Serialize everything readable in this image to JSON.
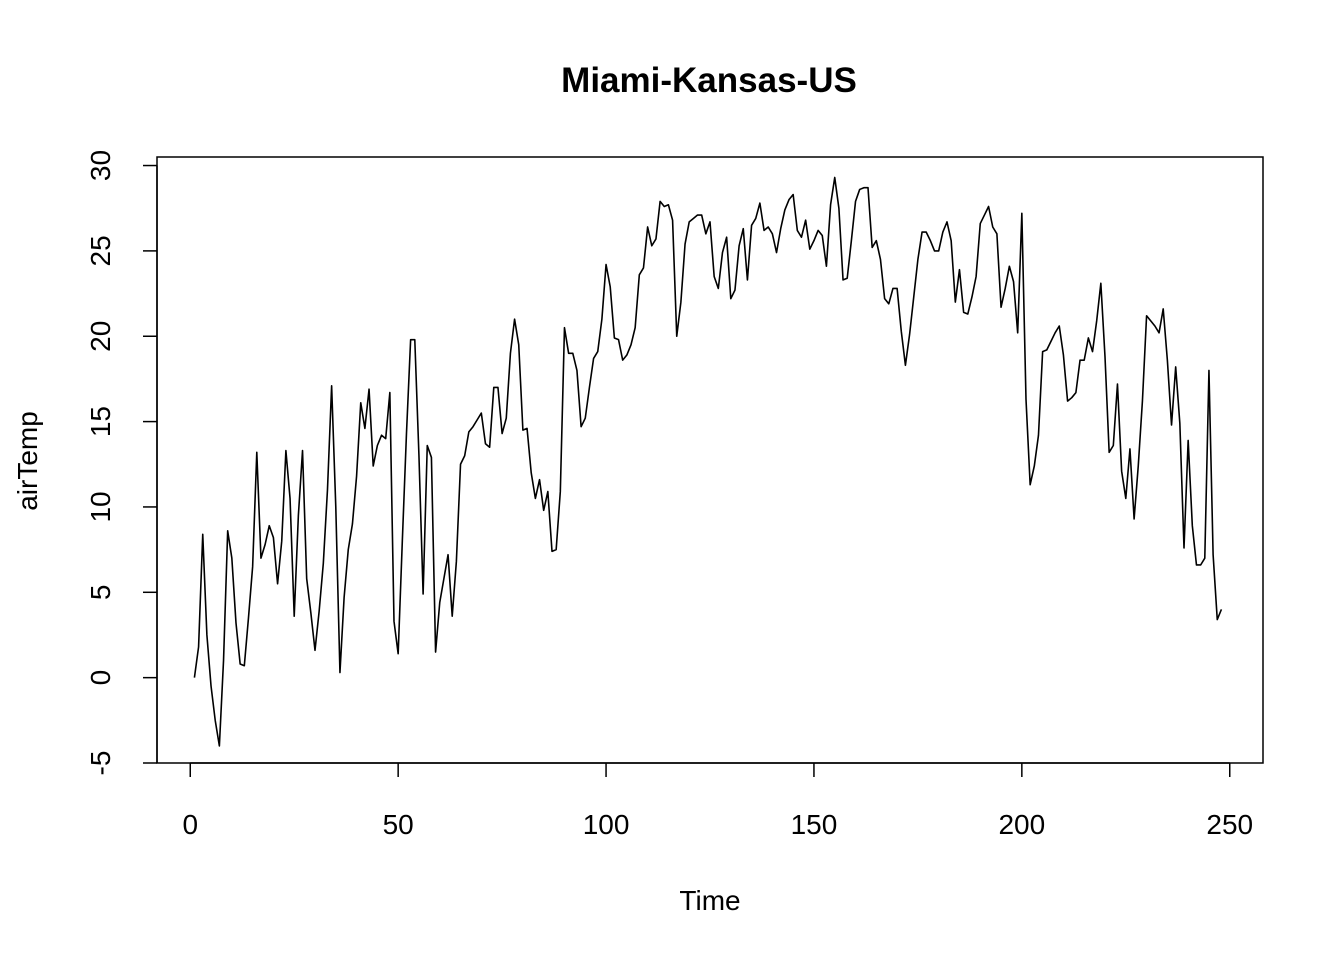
{
  "chart_data": {
    "type": "line",
    "title": "Miami-Kansas-US",
    "xlabel": "Time",
    "ylabel": "airTemp",
    "xlim": [
      -8,
      258
    ],
    "ylim": [
      -5,
      30.5
    ],
    "xticks": [
      0,
      50,
      100,
      150,
      200,
      250
    ],
    "xtick_labels": [
      "0",
      "50",
      "100",
      "150",
      "200",
      "250"
    ],
    "yticks": [
      -5,
      0,
      5,
      10,
      15,
      20,
      25,
      30
    ],
    "ytick_labels": [
      "-5",
      "0",
      "5",
      "10",
      "15",
      "20",
      "25",
      "30"
    ],
    "grid": false,
    "legend": "none",
    "series": [
      {
        "x_start": 1,
        "values": [
          0.0,
          1.8,
          8.4,
          2.5,
          -0.5,
          -2.5,
          -4.0,
          1.0,
          8.6,
          7.0,
          3.2,
          0.8,
          0.7,
          3.5,
          6.5,
          13.2,
          7.0,
          7.8,
          8.9,
          8.2,
          5.5,
          8.0,
          13.3,
          10.5,
          3.6,
          9.5,
          13.3,
          5.8,
          3.8,
          1.6,
          3.9,
          6.7,
          11.0,
          17.1,
          10.0,
          0.3,
          4.7,
          7.5,
          9.0,
          11.8,
          16.1,
          14.6,
          16.9,
          12.4,
          13.6,
          14.2,
          14.0,
          16.7,
          3.3,
          1.4,
          8.0,
          14.3,
          19.8,
          19.8,
          13.0,
          4.9,
          13.6,
          12.9,
          1.5,
          4.4,
          5.8,
          7.2,
          3.6,
          6.8,
          12.5,
          13.0,
          14.4,
          14.7,
          15.1,
          15.5,
          13.7,
          13.5,
          17.0,
          17.0,
          14.3,
          15.2,
          19.0,
          21.0,
          19.5,
          14.5,
          14.6,
          12.0,
          10.5,
          11.6,
          9.8,
          10.9,
          7.4,
          7.5,
          10.9,
          20.5,
          19.0,
          19.0,
          18.0,
          14.7,
          15.2,
          17.0,
          18.7,
          19.1,
          21.0,
          24.2,
          22.9,
          19.9,
          19.8,
          18.6,
          18.9,
          19.5,
          20.5,
          23.6,
          24.0,
          26.4,
          25.3,
          25.7,
          27.9,
          27.6,
          27.7,
          26.8,
          20.0,
          22.0,
          25.4,
          26.7,
          26.9,
          27.1,
          27.1,
          26.0,
          26.7,
          23.5,
          22.8,
          24.9,
          25.8,
          22.2,
          22.7,
          25.3,
          26.3,
          23.3,
          26.5,
          26.9,
          27.8,
          26.2,
          26.4,
          26.0,
          24.9,
          26.3,
          27.4,
          28.0,
          28.3,
          26.2,
          25.8,
          26.8,
          25.1,
          25.6,
          26.2,
          25.9,
          24.1,
          27.7,
          29.3,
          27.5,
          23.3,
          23.4,
          25.6,
          27.9,
          28.6,
          28.7,
          28.7,
          25.2,
          25.6,
          24.5,
          22.2,
          21.9,
          22.8,
          22.8,
          20.3,
          18.3,
          20.1,
          22.3,
          24.5,
          26.1,
          26.1,
          25.6,
          25.0,
          25.0,
          26.1,
          26.7,
          25.6,
          22.0,
          23.9,
          21.4,
          21.3,
          22.3,
          23.5,
          26.6,
          27.1,
          27.6,
          26.4,
          26.0,
          21.7,
          22.8,
          24.1,
          23.2,
          20.2,
          27.2,
          16.3,
          11.3,
          12.4,
          14.2,
          19.1,
          19.2,
          19.7,
          20.2,
          20.6,
          18.9,
          16.2,
          16.4,
          16.7,
          18.6,
          18.6,
          19.9,
          19.1,
          20.9,
          23.1,
          18.8,
          13.2,
          13.6,
          17.2,
          12.1,
          10.5,
          13.4,
          9.3,
          12.4,
          16.2,
          21.2,
          20.9,
          20.6,
          20.2,
          21.6,
          18.6,
          14.8,
          18.2,
          14.9,
          7.6,
          13.9,
          8.9,
          6.6,
          6.6,
          7.0,
          18.0,
          7.2,
          3.4,
          4.0
        ]
      }
    ]
  }
}
